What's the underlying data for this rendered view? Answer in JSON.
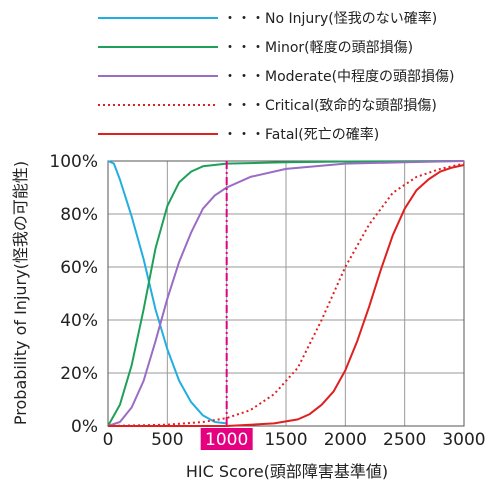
{
  "chart_data": {
    "type": "line",
    "xlabel": "HIC Score(頭部障害基準値)",
    "ylabel": "Probability of Injury(怪我の可能性)",
    "xlim": [
      0,
      3000
    ],
    "ylim": [
      0,
      100
    ],
    "x_ticks": [
      "0",
      "500",
      "1000",
      "1500",
      "2000",
      "2500",
      "3000"
    ],
    "y_ticks": [
      "0%",
      "20%",
      "40%",
      "60%",
      "80%",
      "100%"
    ],
    "highlight_x": 1000,
    "highlight_label": "1000",
    "highlight_color": "#e4007f",
    "grid": true,
    "legend_position": "top",
    "series": [
      {
        "name": "・・・No Injury(怪我のない確率)",
        "color": "#22aee0",
        "dash": "solid",
        "x": [
          0,
          50,
          100,
          200,
          300,
          400,
          500,
          600,
          700,
          800,
          900,
          1000
        ],
        "y": [
          100,
          99,
          93,
          79,
          63,
          44,
          29,
          17,
          9,
          4,
          1.5,
          1
        ]
      },
      {
        "name": "・・・Minor(軽度の頭部損傷)",
        "color": "#1fa05a",
        "dash": "solid",
        "x": [
          0,
          100,
          200,
          300,
          400,
          500,
          600,
          700,
          800,
          1000,
          1500,
          2000,
          3000
        ],
        "y": [
          0,
          8,
          23,
          44,
          67,
          83,
          92,
          96,
          98,
          99,
          99.5,
          99.8,
          100
        ]
      },
      {
        "name": "・・・Moderate(中程度の頭部損傷)",
        "color": "#9b6cc4",
        "dash": "solid",
        "x": [
          0,
          100,
          200,
          300,
          400,
          500,
          600,
          700,
          800,
          900,
          1000,
          1200,
          1500,
          2000,
          2500,
          3000
        ],
        "y": [
          0,
          1.5,
          7,
          17,
          32,
          48,
          62,
          73,
          82,
          87,
          90,
          94,
          97,
          99,
          99.5,
          100
        ]
      },
      {
        "name": "・・・Critical(致命的な頭部損傷)",
        "color": "#e02020",
        "dash": "dotted",
        "x": [
          0,
          500,
          800,
          1000,
          1200,
          1400,
          1600,
          1800,
          2000,
          2200,
          2400,
          2600,
          2800,
          3000
        ],
        "y": [
          0,
          0.5,
          1.5,
          3,
          6,
          12,
          22,
          40,
          60,
          76,
          88,
          94,
          97,
          99
        ]
      },
      {
        "name": "・・・Fatal(死亡の確率)",
        "color": "#e02020",
        "dash": "solid",
        "x": [
          0,
          1000,
          1200,
          1400,
          1600,
          1700,
          1800,
          1900,
          2000,
          2100,
          2200,
          2300,
          2400,
          2500,
          2600,
          2700,
          2800,
          2900,
          3000
        ],
        "y": [
          0,
          0,
          0.5,
          1,
          2.5,
          4.5,
          8,
          13,
          21,
          32,
          45,
          59,
          72,
          82,
          89,
          93,
          96,
          97.5,
          98.5
        ]
      }
    ]
  }
}
